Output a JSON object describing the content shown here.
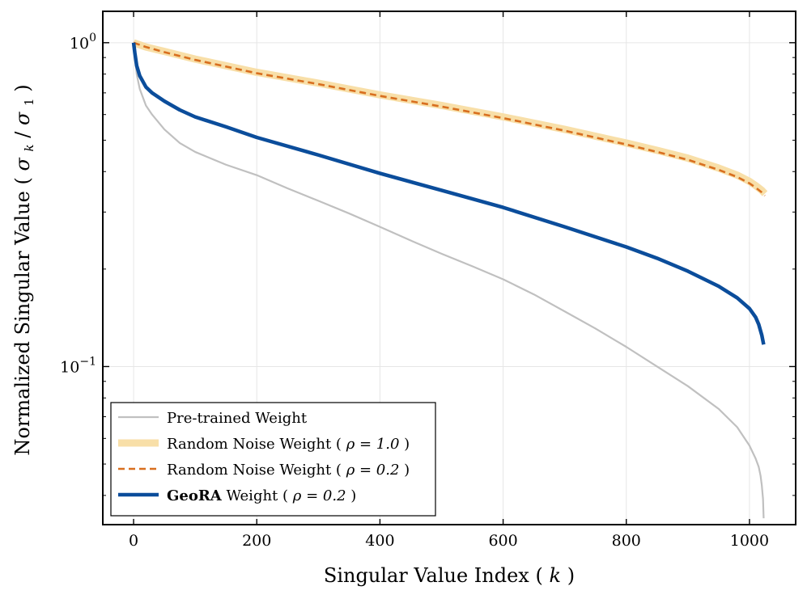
{
  "chart_data": {
    "type": "line",
    "title": "",
    "xlabel": "Singular Value Index",
    "xlabel_var": "k",
    "ylabel": "Normalized Singular Value",
    "ylabel_var": "σ",
    "ylabel_sub_k": "k",
    "ylabel_sub_1": "1",
    "xscale": "linear",
    "yscale": "log",
    "xlim": [
      -50,
      1075
    ],
    "ylim": [
      0.0325,
      1.25
    ],
    "xticks": [
      0,
      200,
      400,
      600,
      800,
      1000
    ],
    "xtick_labels": [
      "0",
      "200",
      "400",
      "600",
      "800",
      "1000"
    ],
    "ytick_labels": [
      {
        "value": 1.0,
        "base": "10",
        "exp": "0"
      },
      {
        "value": 0.1,
        "base": "10",
        "exp": "−1"
      }
    ],
    "grid": true,
    "legend_position": "lower-left",
    "series": [
      {
        "name": "Pre-trained Weight",
        "color": "#c0c0c0",
        "style": "solid",
        "x": [
          0,
          5,
          10,
          20,
          30,
          50,
          75,
          100,
          150,
          200,
          250,
          300,
          350,
          400,
          450,
          500,
          550,
          600,
          650,
          700,
          750,
          800,
          850,
          900,
          950,
          980,
          1000,
          1010,
          1015,
          1018,
          1020,
          1022,
          1023
        ],
        "y": [
          1.0,
          0.8,
          0.72,
          0.64,
          0.6,
          0.54,
          0.49,
          0.46,
          0.42,
          0.39,
          0.355,
          0.325,
          0.297,
          0.27,
          0.245,
          0.223,
          0.204,
          0.186,
          0.167,
          0.148,
          0.131,
          0.115,
          0.1,
          0.087,
          0.074,
          0.065,
          0.057,
          0.052,
          0.049,
          0.046,
          0.043,
          0.039,
          0.034
        ]
      },
      {
        "name": "Random Noise Weight",
        "rho": "ρ = 1.0",
        "color": "#f8dfa8",
        "style": "thick",
        "x": [
          0,
          20,
          50,
          100,
          200,
          300,
          400,
          500,
          600,
          700,
          800,
          850,
          900,
          950,
          980,
          1000,
          1010,
          1020,
          1025
        ],
        "y": [
          1.0,
          0.97,
          0.94,
          0.89,
          0.81,
          0.75,
          0.69,
          0.64,
          0.59,
          0.54,
          0.49,
          0.465,
          0.44,
          0.41,
          0.39,
          0.373,
          0.362,
          0.35,
          0.342
        ]
      },
      {
        "name": "Random Noise Weight",
        "rho": "ρ = 0.2",
        "color": "#d86f1f",
        "style": "dashed",
        "x": [
          0,
          20,
          50,
          100,
          200,
          300,
          400,
          500,
          600,
          700,
          800,
          850,
          900,
          950,
          980,
          1000,
          1010,
          1020,
          1025
        ],
        "y": [
          1.0,
          0.97,
          0.935,
          0.885,
          0.805,
          0.745,
          0.685,
          0.635,
          0.585,
          0.535,
          0.485,
          0.46,
          0.435,
          0.405,
          0.385,
          0.368,
          0.357,
          0.345,
          0.337
        ]
      },
      {
        "name": "Weight",
        "name_prefix_bold": "GeoRA",
        "rho": "ρ = 0.2",
        "color": "#0b4d9b",
        "style": "solid-thick",
        "x": [
          0,
          2,
          5,
          10,
          20,
          30,
          50,
          75,
          100,
          150,
          200,
          300,
          400,
          500,
          600,
          700,
          800,
          850,
          900,
          950,
          980,
          1000,
          1010,
          1015,
          1020,
          1023
        ],
        "y": [
          1.0,
          0.93,
          0.85,
          0.79,
          0.73,
          0.7,
          0.66,
          0.62,
          0.59,
          0.55,
          0.51,
          0.45,
          0.395,
          0.35,
          0.31,
          0.27,
          0.234,
          0.216,
          0.197,
          0.177,
          0.163,
          0.151,
          0.142,
          0.135,
          0.125,
          0.117
        ]
      }
    ]
  }
}
